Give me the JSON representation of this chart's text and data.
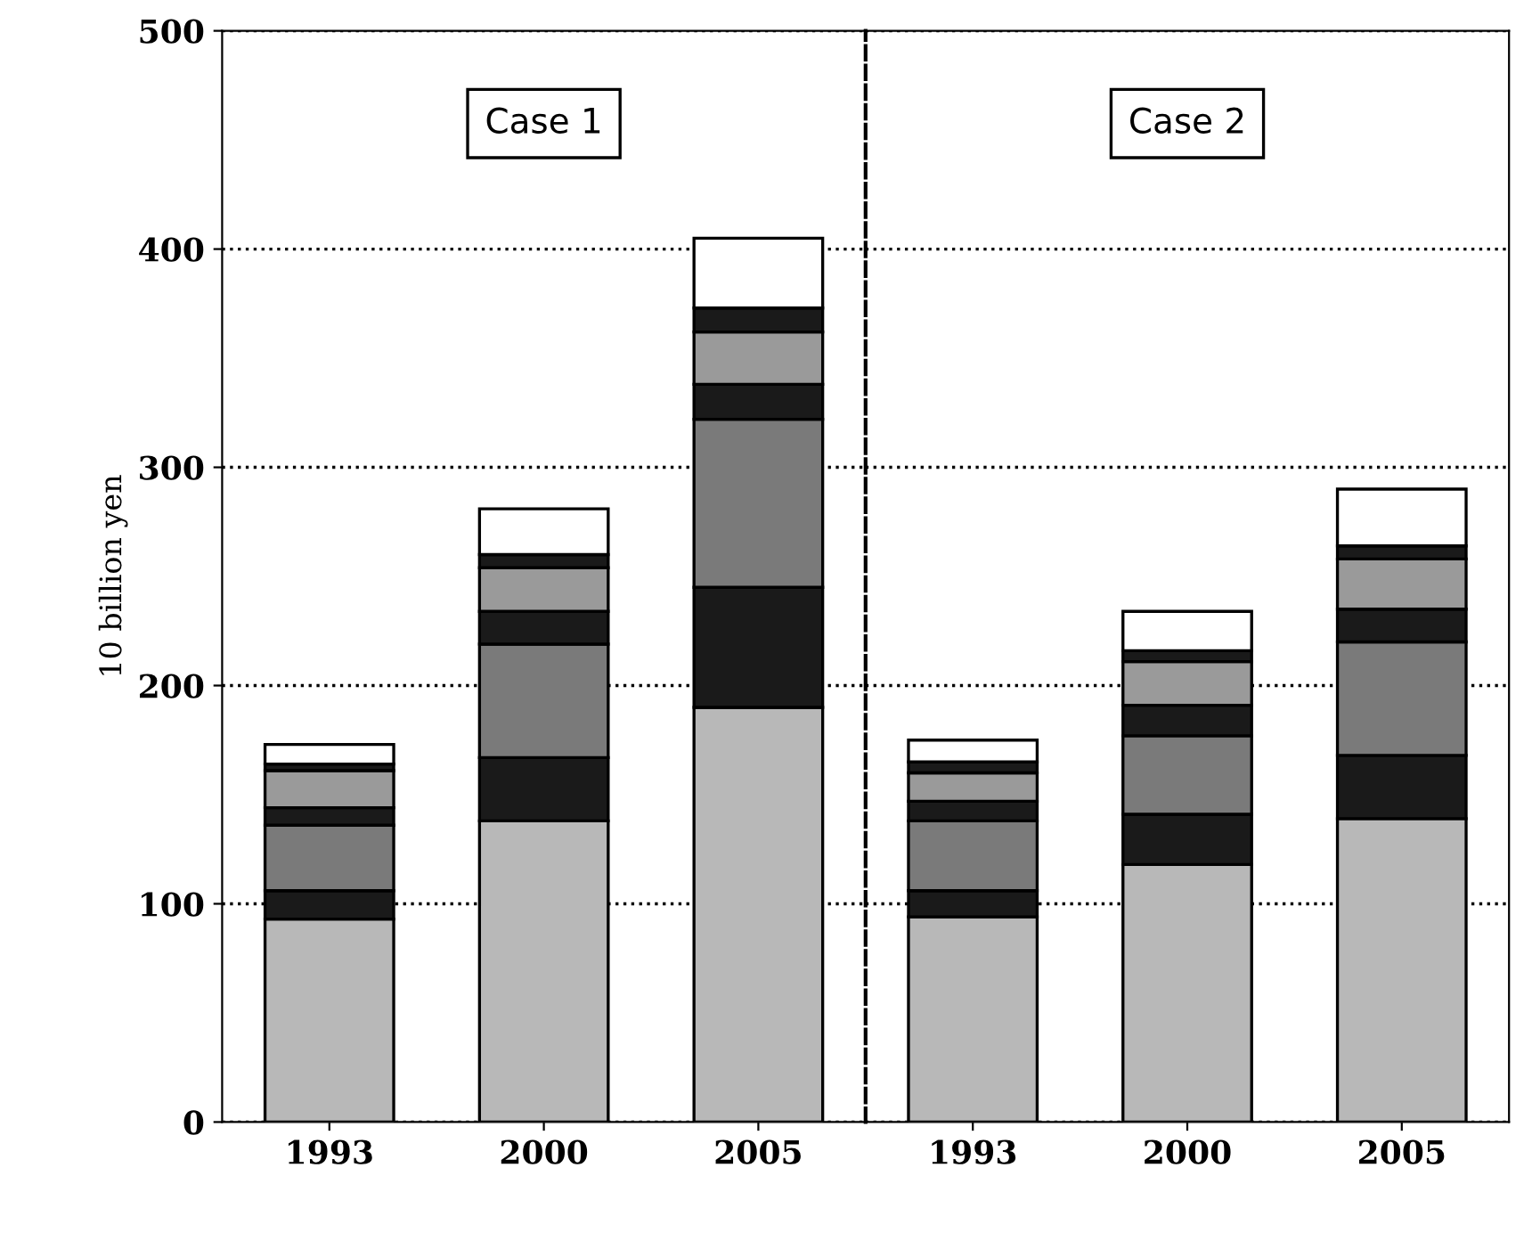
{
  "chart_data": [
    {
      "type": "bar",
      "stacked": true,
      "ylabel": "10 billion yen",
      "title": "Case 1",
      "categories": [
        "1993",
        "2000",
        "2005"
      ],
      "series": [
        {
          "color": "#b8b8b8",
          "values": [
            93,
            138,
            190
          ]
        },
        {
          "color": "#1a1a1a",
          "values": [
            13,
            29,
            55
          ]
        },
        {
          "color": "#7a7a7a",
          "values": [
            30,
            52,
            77
          ]
        },
        {
          "color": "#1a1a1a",
          "values": [
            8,
            15,
            16
          ]
        },
        {
          "color": "#9a9a9a",
          "values": [
            17,
            20,
            24
          ]
        },
        {
          "color": "#1a1a1a",
          "values": [
            3,
            6,
            11
          ]
        },
        {
          "color": "#ffffff",
          "values": [
            9,
            21,
            32
          ]
        }
      ],
      "ylim": [
        0,
        500
      ],
      "yticks": [
        0,
        100,
        200,
        300,
        400,
        500
      ],
      "grid": "y"
    },
    {
      "type": "bar",
      "stacked": true,
      "title": "Case 2",
      "categories": [
        "1993",
        "2000",
        "2005"
      ],
      "series": [
        {
          "color": "#b8b8b8",
          "values": [
            94,
            118,
            139
          ]
        },
        {
          "color": "#1a1a1a",
          "values": [
            12,
            23,
            29
          ]
        },
        {
          "color": "#7a7a7a",
          "values": [
            32,
            36,
            52
          ]
        },
        {
          "color": "#1a1a1a",
          "values": [
            9,
            14,
            15
          ]
        },
        {
          "color": "#9a9a9a",
          "values": [
            13,
            20,
            23
          ]
        },
        {
          "color": "#1a1a1a",
          "values": [
            5,
            5,
            6
          ]
        },
        {
          "color": "#ffffff",
          "values": [
            10,
            18,
            26
          ]
        }
      ],
      "ylim": [
        0,
        500
      ],
      "yticks": [
        0,
        100,
        200,
        300,
        400,
        500
      ],
      "grid": "y",
      "tick_labels": "x"
    }
  ]
}
